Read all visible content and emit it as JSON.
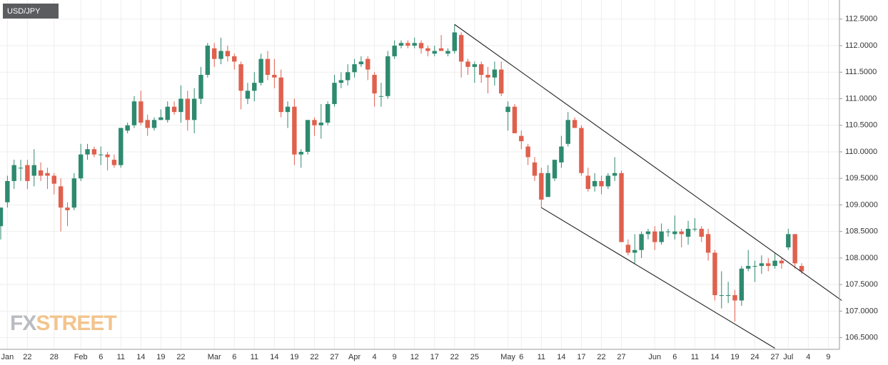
{
  "chart_data": {
    "type": "candlestick",
    "title": "USD/JPY",
    "watermark": [
      "FX",
      "STREET"
    ],
    "up_color": "#2e8a6f",
    "down_color": "#e0604e",
    "grid": true,
    "ylim": [
      106.28,
      112.86
    ],
    "yticks": [
      {
        "value": 106.5,
        "label": "106.5000"
      },
      {
        "value": 107,
        "label": "107.0000"
      },
      {
        "value": 107.5,
        "label": "107.5000"
      },
      {
        "value": 108,
        "label": "108.0000"
      },
      {
        "value": 108.5,
        "label": "108.5000"
      },
      {
        "value": 109,
        "label": "109.0000"
      },
      {
        "value": 109.5,
        "label": "109.5000"
      },
      {
        "value": 110,
        "label": "110.0000"
      },
      {
        "value": 110.5,
        "label": "110.5000"
      },
      {
        "value": 111,
        "label": "111.0000"
      },
      {
        "value": 111.5,
        "label": "111.5000"
      },
      {
        "value": 112,
        "label": "112.0000"
      },
      {
        "value": 112.5,
        "label": "112.5000"
      }
    ],
    "categories": [
      null,
      "Jan",
      null,
      null,
      "22",
      null,
      null,
      null,
      "28",
      null,
      null,
      null,
      "Feb",
      null,
      null,
      "6",
      null,
      null,
      "11",
      null,
      null,
      "14",
      null,
      null,
      "19",
      null,
      null,
      "22",
      null,
      null,
      null,
      null,
      "Mar",
      null,
      null,
      "6",
      null,
      null,
      "11",
      null,
      null,
      "14",
      null,
      null,
      "19",
      null,
      null,
      "22",
      null,
      null,
      "27",
      null,
      null,
      "Apr",
      null,
      null,
      "4",
      null,
      null,
      "9",
      null,
      null,
      "12",
      null,
      null,
      "17",
      null,
      null,
      "22",
      null,
      null,
      "25",
      null,
      null,
      null,
      null,
      "May",
      null,
      "6",
      null,
      null,
      "11",
      null,
      null,
      "14",
      null,
      null,
      "17",
      null,
      null,
      "22",
      null,
      null,
      "27",
      null,
      null,
      null,
      null,
      "Jun",
      null,
      null,
      "6",
      null,
      null,
      "11",
      null,
      null,
      "14",
      null,
      null,
      "19",
      null,
      null,
      "24",
      null,
      null,
      "27",
      null,
      "Jul",
      null,
      null,
      "4",
      null,
      null,
      "9",
      null
    ],
    "open": [
      108.6,
      109.05,
      109.45,
      109.7,
      109.75,
      109.55,
      109.65,
      109.6,
      109.55,
      109.35,
      108.95,
      108.95,
      109.5,
      109.95,
      110.05,
      109.95,
      109.95,
      109.85,
      109.75,
      110.4,
      110.5,
      110.95,
      110.6,
      110.45,
      110.6,
      110.6,
      110.85,
      110.75,
      111.0,
      110.6,
      111.0,
      111.45,
      111.95,
      111.75,
      111.9,
      111.8,
      111.65,
      111.0,
      111.15,
      111.3,
      111.75,
      111.45,
      111.4,
      110.75,
      110.85,
      109.95,
      110.0,
      110.6,
      110.5,
      110.55,
      110.9,
      111.3,
      111.35,
      111.5,
      111.65,
      111.75,
      111.45,
      111.05,
      111.05,
      111.8,
      112.0,
      112.05,
      112.0,
      112.05,
      111.95,
      111.85,
      111.95,
      111.85,
      111.9,
      112.2,
      111.7,
      111.6,
      111.65,
      111.45,
      111.4,
      111.55,
      110.75,
      110.85,
      110.3,
      110.1,
      109.8,
      109.6,
      109.15,
      109.5,
      109.8,
      110.15,
      110.6,
      110.45,
      109.55,
      109.35,
      109.45,
      109.35,
      109.55,
      109.6,
      108.25,
      108.1,
      108.15,
      108.45,
      108.5,
      108.3,
      108.5,
      108.45,
      108.5,
      108.4,
      108.55,
      108.55,
      108.45,
      108.1,
      107.3,
      107.3,
      107.3,
      107.2,
      107.8,
      107.85,
      107.85,
      107.9,
      107.85,
      107.95,
      108.2,
      108.45,
      107.85,
      null,
      null,
      null,
      null,
      null
    ],
    "high": [
      108.95,
      109.55,
      109.85,
      109.85,
      109.85,
      110.05,
      109.8,
      109.7,
      109.6,
      109.5,
      109.05,
      109.6,
      110.15,
      110.15,
      110.1,
      110.1,
      110.0,
      109.95,
      110.45,
      110.55,
      111.05,
      111.15,
      110.7,
      110.65,
      110.8,
      110.95,
      110.95,
      111.25,
      111.15,
      111.2,
      111.6,
      112.05,
      112.05,
      112.15,
      112.0,
      111.85,
      111.7,
      111.3,
      111.5,
      111.85,
      111.9,
      111.75,
      111.55,
      110.95,
      111.0,
      110.05,
      110.6,
      110.65,
      110.9,
      110.95,
      111.45,
      111.5,
      111.65,
      111.75,
      111.8,
      111.8,
      111.5,
      111.3,
      111.9,
      112.1,
      112.1,
      112.1,
      112.15,
      112.1,
      112.0,
      112.0,
      112.2,
      111.95,
      112.4,
      112.25,
      111.75,
      111.7,
      111.7,
      111.6,
      111.7,
      111.7,
      110.95,
      110.9,
      110.4,
      110.15,
      109.9,
      109.7,
      109.75,
      109.85,
      110.3,
      110.75,
      110.65,
      110.5,
      109.7,
      109.6,
      109.55,
      109.6,
      109.9,
      109.65,
      108.35,
      108.45,
      108.5,
      108.55,
      108.6,
      108.65,
      108.55,
      108.8,
      108.55,
      108.7,
      108.75,
      108.6,
      108.55,
      108.15,
      107.75,
      107.55,
      107.4,
      107.85,
      108.15,
      107.95,
      108.05,
      108.0,
      108.1,
      108.0,
      108.55,
      108.45,
      107.9,
      null,
      null,
      null,
      null,
      null
    ],
    "low": [
      108.35,
      108.95,
      109.3,
      109.45,
      109.3,
      109.35,
      109.45,
      109.3,
      109.2,
      108.5,
      108.6,
      108.9,
      109.45,
      109.85,
      109.9,
      109.75,
      109.65,
      109.7,
      109.7,
      110.35,
      110.45,
      110.5,
      110.3,
      110.4,
      110.6,
      110.55,
      110.7,
      110.55,
      110.4,
      110.35,
      110.9,
      111.4,
      111.6,
      111.65,
      111.7,
      111.55,
      110.8,
      110.9,
      110.95,
      111.25,
      111.35,
      111.2,
      110.65,
      110.45,
      109.75,
      109.7,
      109.95,
      110.3,
      110.25,
      110.5,
      110.85,
      111.2,
      111.25,
      111.4,
      111.6,
      111.35,
      110.85,
      110.85,
      111.0,
      111.75,
      111.95,
      111.95,
      111.95,
      111.85,
      111.8,
      111.8,
      111.9,
      111.8,
      111.85,
      111.4,
      111.45,
      111.3,
      111.3,
      111.1,
      111.25,
      111.05,
      110.4,
      110.35,
      110.05,
      109.75,
      109.45,
      108.95,
      109.15,
      109.45,
      109.7,
      110.1,
      110.45,
      109.55,
      109.25,
      109.25,
      109.2,
      109.3,
      109.45,
      108.3,
      108.05,
      107.9,
      108.0,
      108.35,
      108.15,
      108.25,
      108.4,
      108.35,
      108.2,
      108.25,
      108.5,
      108.3,
      107.95,
      107.2,
      107.05,
      107.15,
      106.8,
      107.1,
      107.75,
      107.55,
      107.7,
      107.75,
      107.8,
      107.8,
      108.15,
      107.8,
      107.7,
      null,
      null,
      null,
      null,
      null
    ],
    "close": [
      108.95,
      109.45,
      109.75,
      109.7,
      109.45,
      109.75,
      109.55,
      109.55,
      109.4,
      108.95,
      108.9,
      109.5,
      109.95,
      110.05,
      109.95,
      109.95,
      109.9,
      109.75,
      110.45,
      110.5,
      110.95,
      110.55,
      110.45,
      110.6,
      110.65,
      110.85,
      110.75,
      111.0,
      110.6,
      111.0,
      111.45,
      112.0,
      111.75,
      111.9,
      111.8,
      111.7,
      111.15,
      111.15,
      111.3,
      111.75,
      111.45,
      111.4,
      110.75,
      110.85,
      109.95,
      110.0,
      110.6,
      110.5,
      110.55,
      110.9,
      111.3,
      111.35,
      111.5,
      111.65,
      111.7,
      111.55,
      111.1,
      111.05,
      111.8,
      112.0,
      112.05,
      112.0,
      112.05,
      111.95,
      111.9,
      111.9,
      111.9,
      111.9,
      112.25,
      111.7,
      111.6,
      111.65,
      111.45,
      111.4,
      111.55,
      111.1,
      110.85,
      110.35,
      110.2,
      109.9,
      109.55,
      109.1,
      109.6,
      109.85,
      110.1,
      110.6,
      110.45,
      109.6,
      109.3,
      109.45,
      109.35,
      109.55,
      109.6,
      108.3,
      108.1,
      108.15,
      108.45,
      108.5,
      108.3,
      108.5,
      108.5,
      108.5,
      108.45,
      108.55,
      108.55,
      108.4,
      108.1,
      107.3,
      107.3,
      107.3,
      107.2,
      107.8,
      107.85,
      107.85,
      107.9,
      107.85,
      107.95,
      107.9,
      108.45,
      107.9,
      107.75,
      null,
      null,
      null,
      null,
      null
    ],
    "trendlines": [
      {
        "x": [
          68,
          126
        ],
        "y": [
          112.4,
          107.2
        ]
      },
      {
        "x": [
          81,
          116
        ],
        "y": [
          108.95,
          106.3
        ]
      }
    ]
  }
}
